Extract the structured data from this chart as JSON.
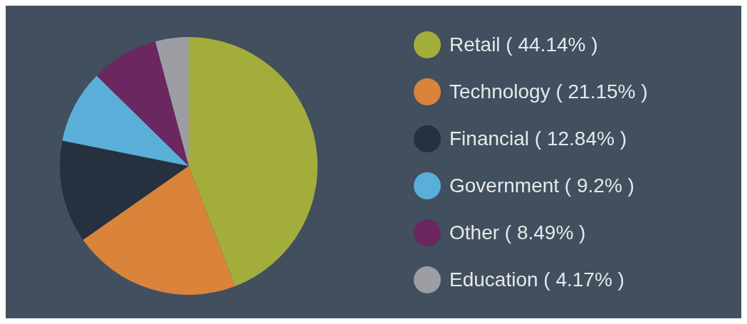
{
  "chart_data": {
    "type": "pie",
    "categories": [
      "Retail",
      "Technology",
      "Financial",
      "Government",
      "Other",
      "Education"
    ],
    "values": [
      44.14,
      21.15,
      12.84,
      9.2,
      8.49,
      4.17
    ],
    "value_labels": [
      "( 44.14% )",
      "( 21.15% )",
      "( 12.84% )",
      "( 9.2% )",
      "( 8.49% )",
      "( 4.17% )"
    ],
    "colors": [
      "#a3ad3b",
      "#d9843a",
      "#26313f",
      "#5aafd9",
      "#6a2760",
      "#9c9ea3"
    ],
    "legend": "right"
  }
}
